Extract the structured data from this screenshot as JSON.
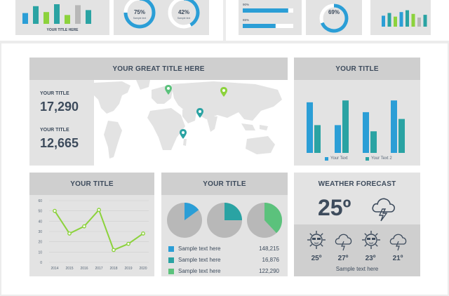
{
  "thumbs": {
    "t1_caption": "YOUR TITLE HERE",
    "donut1": {
      "value": "75%",
      "fraction": 0.75,
      "caption": "Sample text"
    },
    "donut2": {
      "value": "42%",
      "fraction": 0.42,
      "caption": "Sample text"
    },
    "bar1": {
      "label": "90%",
      "fraction": 0.9
    },
    "bar2": {
      "label": "65%",
      "fraction": 0.65
    },
    "donut3": {
      "value": "69%",
      "fraction": 0.69
    },
    "mini_bars": [
      0.55,
      0.9,
      0.6,
      1.0,
      0.45,
      0.95,
      0.7
    ],
    "mini_bars2": [
      0.6,
      0.75,
      0.55,
      0.8,
      0.9,
      0.7,
      0.5,
      0.65
    ]
  },
  "map_panel": {
    "title": "YOUR GREAT TITLE HERE",
    "stat1_label": "YOUR TITLE",
    "stat1_value": "17,290",
    "stat2_label": "YOUR TITLE",
    "stat2_value": "12,665"
  },
  "bar_panel": {
    "title": "YOUR TITLE",
    "legend1": "Your Text",
    "legend2": "Your Text 2",
    "colors": {
      "s1": "#2b9ed6",
      "s2": "#2aa3a3"
    },
    "chart_data": {
      "type": "bar",
      "series": [
        {
          "name": "Your Text",
          "values": [
            82,
            45,
            66,
            85
          ]
        },
        {
          "name": "Your Text 2",
          "values": [
            45,
            85,
            35,
            55
          ]
        }
      ],
      "ylim": [
        0,
        100
      ]
    }
  },
  "line_panel": {
    "title": "YOUR TITLE",
    "chart_data": {
      "type": "line",
      "x": [
        "2014",
        "2015",
        "2016",
        "2017",
        "2018",
        "2019",
        "2020"
      ],
      "values": [
        50,
        28,
        35,
        51,
        12,
        18,
        28
      ],
      "yticks": [
        "0",
        "10",
        "20",
        "30",
        "40",
        "50",
        "60"
      ],
      "ylim": [
        0,
        60
      ],
      "color": "#8cd23c"
    }
  },
  "pie_panel": {
    "title": "YOUR TITLE",
    "pies": [
      {
        "fraction": 0.15,
        "color": "#2b9ed6"
      },
      {
        "fraction": 0.25,
        "color": "#2aa3a3"
      },
      {
        "fraction": 0.38,
        "color": "#5bc27c"
      }
    ],
    "rows": [
      {
        "label": "Sample text here",
        "value": "148,215",
        "color": "#2b9ed6"
      },
      {
        "label": "Sample text here",
        "value": "16,876",
        "color": "#2aa3a3"
      },
      {
        "label": "Sample text here",
        "value": "122,290",
        "color": "#5bc27c"
      }
    ]
  },
  "weather_panel": {
    "title": "WEATHER FORECAST",
    "main_temp": "25º",
    "days": [
      {
        "temp": "25º",
        "icon": "sun-face-icon"
      },
      {
        "temp": "27º",
        "icon": "storm-cloud-icon"
      },
      {
        "temp": "23º",
        "icon": "sun-face-icon"
      },
      {
        "temp": "21º",
        "icon": "storm-cloud-icon"
      }
    ],
    "caption": "Sample text here"
  }
}
